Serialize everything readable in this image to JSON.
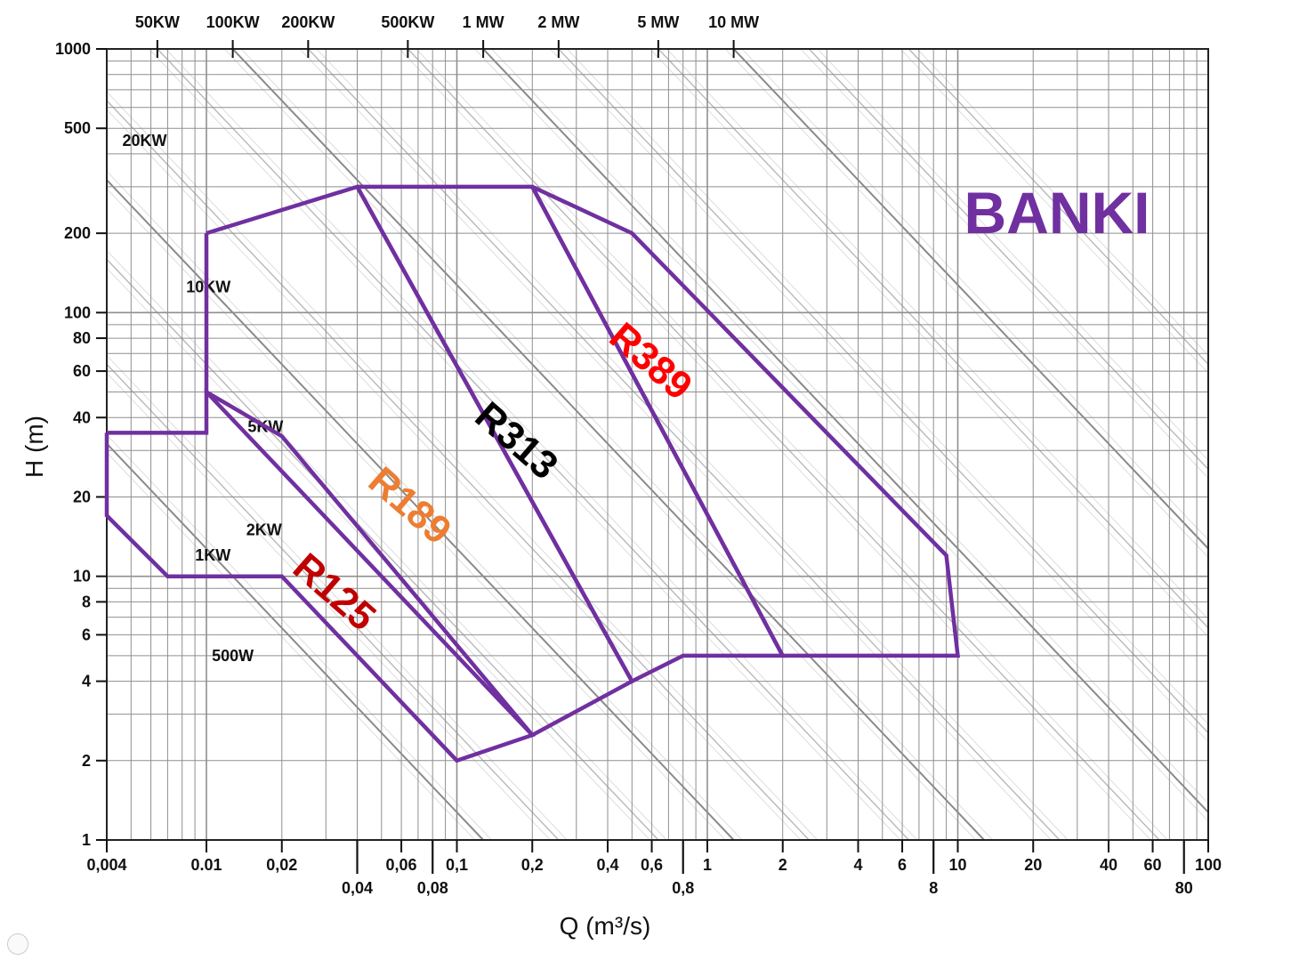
{
  "chart_data": {
    "type": "line",
    "title": "BANKI",
    "xlabel": "Q (m³/s)",
    "ylabel": "H (m)",
    "x_scale": "log",
    "y_scale": "log",
    "xlim": [
      0.004,
      100
    ],
    "ylim": [
      1,
      1000
    ],
    "grid": true,
    "x_ticks_upper": [
      "0,004",
      "0.01",
      "0,02",
      "0,06",
      "0,1",
      "0,2",
      "0,4",
      "0,6",
      "1",
      "2",
      "4",
      "6",
      "10",
      "20",
      "40",
      "60",
      "100"
    ],
    "x_ticks_lower": [
      "0,04",
      "0,08",
      "0,8",
      "8",
      "80"
    ],
    "y_ticks": [
      "1000",
      "500",
      "200",
      "100",
      "80",
      "60",
      "40",
      "20",
      "10",
      "8",
      "6",
      "4",
      "2",
      "1"
    ],
    "power_ticks_top": [
      "50KW",
      "100KW",
      "200KW",
      "500KW",
      "1 MW",
      "2 MW",
      "5 MW",
      "10 MW"
    ],
    "power_labels_inside": [
      "20KW",
      "10KW",
      "5KW",
      "2KW",
      "1KW",
      "500W"
    ],
    "series": [
      {
        "name": "R125",
        "color": "#c00000",
        "outline": [
          [
            0.004,
            35
          ],
          [
            0.01,
            35
          ],
          [
            0.01,
            50
          ],
          [
            0.02,
            34
          ],
          [
            0.2,
            2.5
          ],
          [
            0.1,
            2
          ],
          [
            0.02,
            10
          ],
          [
            0.007,
            10
          ],
          [
            0.004,
            17
          ],
          [
            0.004,
            35
          ]
        ]
      },
      {
        "name": "R189",
        "color": "#ed7d31",
        "outline": [
          [
            0.01,
            200
          ],
          [
            0.04,
            300
          ],
          [
            0.5,
            4
          ],
          [
            0.2,
            2.5
          ],
          [
            0.01,
            50
          ],
          [
            0.01,
            200
          ]
        ]
      },
      {
        "name": "R313",
        "color": "#000000",
        "outline": [
          [
            0.04,
            300
          ],
          [
            0.2,
            300
          ],
          [
            2,
            5
          ],
          [
            0.8,
            5
          ],
          [
            0.5,
            4
          ],
          [
            0.04,
            300
          ]
        ]
      },
      {
        "name": "R389",
        "color": "#ff0000",
        "outline": [
          [
            0.2,
            300
          ],
          [
            0.5,
            200
          ],
          [
            9,
            12
          ],
          [
            10,
            5
          ],
          [
            2,
            5
          ],
          [
            0.2,
            300
          ]
        ]
      }
    ],
    "region_line_color": "#7030a0",
    "title_color": "#7030a0"
  }
}
